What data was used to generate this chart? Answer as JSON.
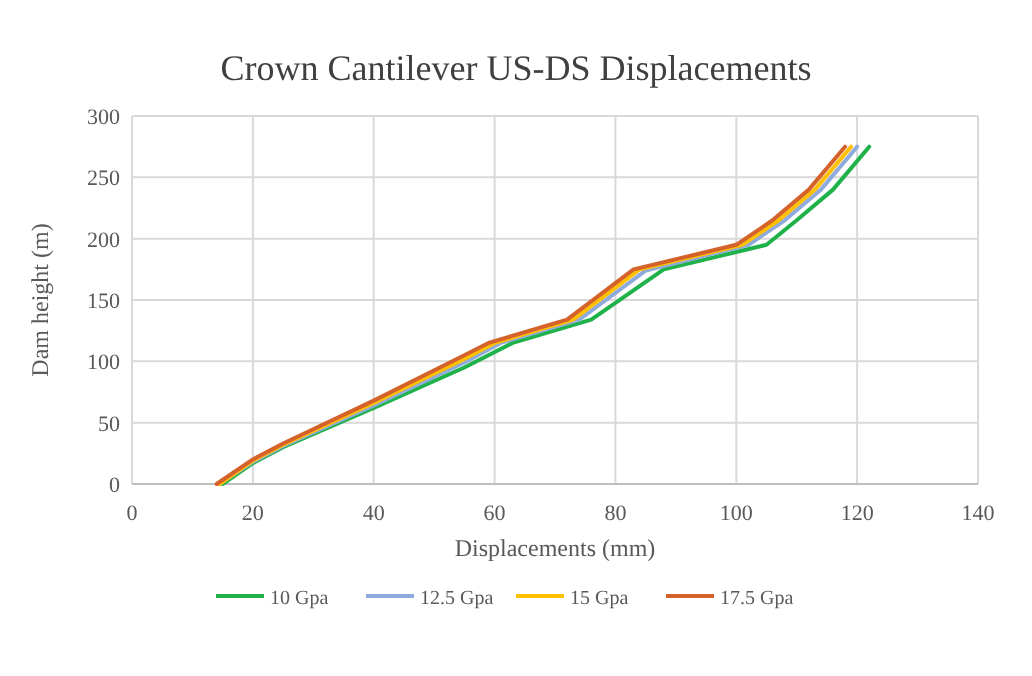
{
  "chart_data": {
    "type": "line",
    "title": "Crown Cantilever US-DS Displacements",
    "xlabel": "Displacements (mm)",
    "ylabel": "Dam height (m)",
    "xlim": [
      0,
      140
    ],
    "xticks": [
      0,
      20,
      40,
      60,
      80,
      100,
      120,
      140
    ],
    "ylim": [
      0,
      300
    ],
    "yticks": [
      0,
      50,
      100,
      150,
      200,
      250,
      300
    ],
    "grid": true,
    "legend": "bottom",
    "marker": "none",
    "line_style": "solid",
    "series": [
      {
        "name": "10 Gpa",
        "color": "#1fb24a",
        "x": [
          15,
          20,
          25,
          40,
          55,
          63,
          76,
          88,
          105,
          110,
          116,
          122
        ],
        "values": [
          0,
          17,
          30,
          62,
          95,
          115,
          134,
          175,
          195,
          215,
          240,
          275
        ]
      },
      {
        "name": "12.5 Gpa",
        "color": "#8faadc",
        "x": [
          14.5,
          20,
          25,
          40,
          55,
          61,
          74,
          85,
          102,
          108,
          114,
          120
        ],
        "values": [
          0,
          18,
          31,
          64,
          99,
          115,
          134,
          174,
          195,
          215,
          240,
          275
        ]
      },
      {
        "name": "15 Gpa",
        "color": "#ffc000",
        "x": [
          14.5,
          20,
          25,
          40,
          55,
          60,
          73,
          84,
          101,
          107,
          113,
          119
        ],
        "values": [
          0,
          19,
          32,
          66,
          102,
          115,
          134,
          175,
          195,
          215,
          240,
          275
        ]
      },
      {
        "name": "17.5 Gpa",
        "color": "#d5622a",
        "x": [
          14,
          20,
          25,
          40,
          55,
          59,
          72,
          83,
          100,
          106,
          112,
          118
        ],
        "values": [
          0,
          20,
          33,
          68,
          105,
          115,
          134,
          175,
          195,
          215,
          240,
          275
        ]
      }
    ]
  }
}
